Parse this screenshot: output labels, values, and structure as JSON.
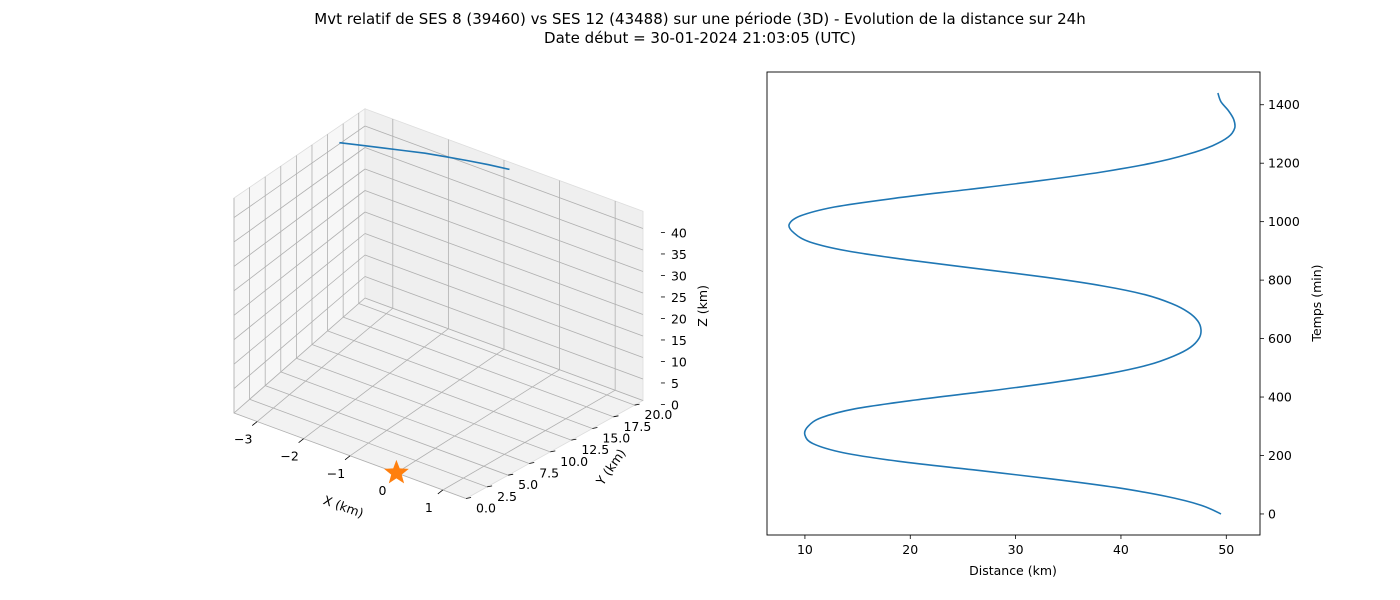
{
  "figure": {
    "title_line1": "Mvt relatif de SES 8 (39460) vs SES 12 (43488) sur une période (3D) - Evolution de la distance sur 24h",
    "title_line2": "Date début = 30-01-2024 21:03:05 (UTC)"
  },
  "chart_data": [
    {
      "type": "line",
      "projection": "3d",
      "xlabel": "X (km)",
      "ylabel": "Y (km)",
      "zlabel": "Z (km)",
      "x_ticks": [
        -3,
        -2,
        -1,
        0,
        1
      ],
      "y_ticks": [
        0.0,
        2.5,
        5.0,
        7.5,
        10.0,
        12.5,
        15.0,
        17.5,
        20.0
      ],
      "z_ticks": [
        0,
        5,
        10,
        15,
        20,
        25,
        30,
        35,
        40
      ],
      "x_tick_labels": [
        "−3",
        "−2",
        "−1",
        "0",
        "1"
      ],
      "y_tick_labels": [
        "0.0",
        "2.5",
        "5.0",
        "7.5",
        "10.0",
        "12.5",
        "15.0",
        "17.5",
        "20.0"
      ],
      "z_tick_labels": [
        "0",
        "5",
        "10",
        "15",
        "20",
        "25",
        "30",
        "35",
        "40"
      ],
      "xlim": [
        -3.5,
        1.5
      ],
      "ylim": [
        0,
        21
      ],
      "zlim": [
        0,
        44
      ],
      "grid": true,
      "line_color": "#1f77b4",
      "series": [
        {
          "x": [
            -0.9,
            -1.2,
            -1.5,
            -1.8,
            -2.1,
            -2.4,
            -2.7,
            -3.0,
            -3.3
          ],
          "y": [
            21.0,
            20.4,
            19.8,
            19.1,
            18.4,
            17.6,
            16.8,
            16.0,
            15.2
          ],
          "z": [
            42.3,
            42.5,
            42.6,
            42.7,
            42.8,
            42.8,
            42.8,
            42.8,
            42.8
          ]
        }
      ],
      "marker": {
        "shape": "star",
        "x": 0,
        "y": 0,
        "z": 0,
        "color": "#ff7f0e"
      }
    },
    {
      "type": "line",
      "xlabel": "Distance (km)",
      "ylabel": "Temps (min)",
      "y_axis_side": "right",
      "x_ticks": [
        10,
        20,
        30,
        40,
        50
      ],
      "y_ticks": [
        0,
        200,
        400,
        600,
        800,
        1000,
        1200,
        1400
      ],
      "xlim": [
        6.4,
        53.2
      ],
      "ylim": [
        -72,
        1512
      ],
      "grid": false,
      "line_color": "#1f77b4",
      "series": [
        {
          "time": [
            0,
            30,
            60,
            90,
            120,
            150,
            180,
            210,
            240,
            270,
            300,
            330,
            360,
            390,
            420,
            450,
            480,
            510,
            540,
            570,
            600,
            630,
            660,
            690,
            720,
            750,
            780,
            810,
            840,
            870,
            900,
            930,
            960,
            990,
            1020,
            1050,
            1080,
            1110,
            1140,
            1170,
            1200,
            1230,
            1260,
            1290,
            1320,
            1350,
            1380,
            1410,
            1440
          ],
          "distance": [
            49.5,
            47.6,
            44.3,
            39.6,
            33.4,
            26.2,
            18.9,
            13.6,
            10.8,
            10.0,
            10.3,
            11.6,
            14.8,
            20.5,
            27.3,
            33.6,
            38.8,
            42.6,
            45.0,
            46.6,
            47.4,
            47.6,
            47.3,
            46.4,
            44.8,
            42.3,
            38.3,
            32.8,
            26.2,
            19.6,
            14.0,
            10.5,
            9.0,
            8.5,
            9.6,
            12.8,
            18.5,
            25.5,
            32.3,
            38.2,
            42.9,
            46.3,
            48.7,
            50.2,
            50.8,
            50.7,
            50.2,
            49.5,
            49.2
          ]
        }
      ]
    }
  ]
}
